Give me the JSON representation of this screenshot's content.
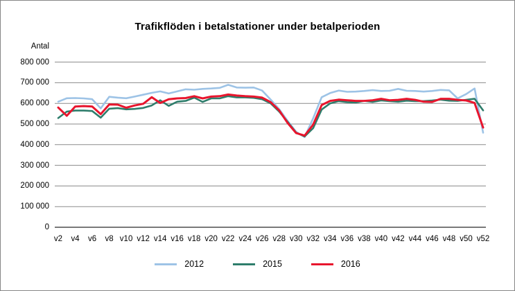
{
  "figure": {
    "background": "#ffffff",
    "border_color": "#858585",
    "gridline_color": "#8a8a8a",
    "axis_line_color": "#4d4d4d"
  },
  "chart_data": {
    "type": "line",
    "title": "Trafikflöden i betalstationer under betalperioden",
    "y_axis_label": "Antal",
    "grid": true,
    "legend_position": "bottom",
    "y_axis": {
      "min": 0,
      "max": 800000,
      "tick_interval": 100000,
      "tick_labels": [
        "0",
        "100 000",
        "200 000",
        "300 000",
        "400 000",
        "500 000",
        "600 000",
        "700 000",
        "800 000"
      ]
    },
    "x_axis": {
      "unit": "week",
      "week_start": 2,
      "week_end": 52,
      "tick_step_weeks": 2,
      "tick_labels": [
        "v2",
        "v4",
        "v6",
        "v8",
        "v10",
        "v12",
        "v14",
        "v16",
        "v18",
        "v20",
        "v22",
        "v24",
        "v26",
        "v28",
        "v30",
        "v32",
        "v34",
        "v36",
        "v38",
        "v40",
        "v42",
        "v44",
        "v46",
        "v48",
        "v50",
        "v52"
      ]
    },
    "series": [
      {
        "name": "2012",
        "color": "#9DC3E6",
        "values": [
          608000,
          625000,
          626000,
          624000,
          620000,
          576000,
          632000,
          628000,
          625000,
          633000,
          642000,
          651000,
          658000,
          648000,
          658000,
          668000,
          666000,
          670000,
          672000,
          675000,
          690000,
          677000,
          676000,
          677000,
          662000,
          618000,
          572000,
          515000,
          462000,
          437000,
          528000,
          630000,
          650000,
          662000,
          656000,
          657000,
          660000,
          664000,
          660000,
          661000,
          670000,
          661000,
          660000,
          657000,
          660000,
          665000,
          663000,
          624000,
          645000,
          672000,
          458000
        ]
      },
      {
        "name": "2015",
        "color": "#2E7D6B",
        "values": [
          529000,
          560000,
          565000,
          565000,
          563000,
          531000,
          574000,
          577000,
          571000,
          573000,
          578000,
          590000,
          615000,
          588000,
          608000,
          612000,
          628000,
          607000,
          624000,
          624000,
          635000,
          629000,
          629000,
          627000,
          620000,
          600000,
          560000,
          510000,
          458000,
          440000,
          480000,
          570000,
          600000,
          611000,
          606000,
          604000,
          612000,
          607000,
          614000,
          611000,
          608000,
          613000,
          611000,
          611000,
          614000,
          618000,
          613000,
          612000,
          617000,
          622000,
          566000
        ]
      },
      {
        "name": "2016",
        "color": "#E8152D",
        "values": [
          580000,
          540000,
          585000,
          587000,
          585000,
          548000,
          595000,
          594000,
          579000,
          590000,
          598000,
          630000,
          602000,
          620000,
          624000,
          626000,
          635000,
          624000,
          633000,
          635000,
          643000,
          638000,
          635000,
          633000,
          628000,
          606000,
          566000,
          505000,
          456000,
          444000,
          497000,
          592000,
          612000,
          618000,
          615000,
          612000,
          612000,
          615000,
          622000,
          615000,
          617000,
          622000,
          617000,
          608000,
          607000,
          622000,
          622000,
          617000,
          614000,
          602000,
          483000
        ]
      }
    ]
  }
}
